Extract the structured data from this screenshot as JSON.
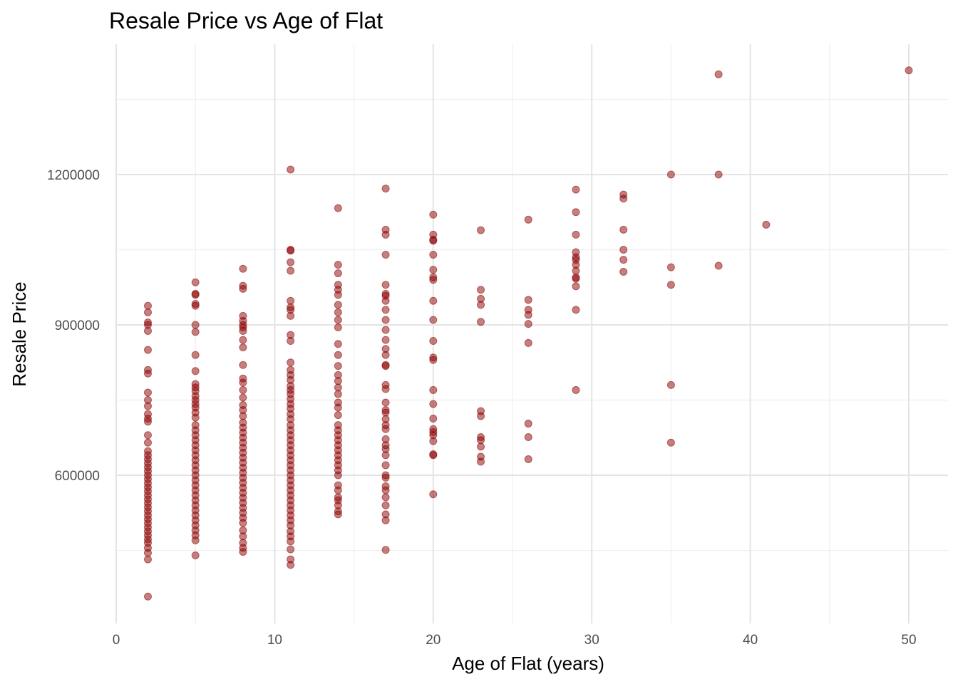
{
  "chart_data": {
    "type": "scatter",
    "title": "Resale Price vs Age of Flat",
    "xlabel": "Age of Flat (years)",
    "ylabel": "Resale Price",
    "xlim": [
      0,
      52.5
    ],
    "ylim": [
      360000,
      1405000
    ],
    "x_ticks": [
      0,
      10,
      20,
      30,
      40,
      50
    ],
    "y_ticks": [
      600000,
      900000,
      1200000
    ],
    "x_tick_labels": [
      "0",
      "10",
      "20",
      "30",
      "40",
      "50"
    ],
    "y_tick_labels": [
      "600000",
      "900000",
      "1200000"
    ],
    "grid": true,
    "point_color": "#8b0000",
    "point_opacity": 0.5,
    "points": [
      [
        2,
        938000
      ],
      [
        2,
        925000
      ],
      [
        2,
        905000
      ],
      [
        2,
        900000
      ],
      [
        2,
        888000
      ],
      [
        2,
        850000
      ],
      [
        2,
        810000
      ],
      [
        2,
        803000
      ],
      [
        2,
        765000
      ],
      [
        2,
        750000
      ],
      [
        2,
        738000
      ],
      [
        2,
        722000
      ],
      [
        2,
        713000
      ],
      [
        2,
        707000
      ],
      [
        2,
        680000
      ],
      [
        2,
        665000
      ],
      [
        2,
        648000
      ],
      [
        2,
        640000
      ],
      [
        2,
        632000
      ],
      [
        2,
        624000
      ],
      [
        2,
        616000
      ],
      [
        2,
        608000
      ],
      [
        2,
        600000
      ],
      [
        2,
        592000
      ],
      [
        2,
        584000
      ],
      [
        2,
        576000
      ],
      [
        2,
        568000
      ],
      [
        2,
        560000
      ],
      [
        2,
        552000
      ],
      [
        2,
        544000
      ],
      [
        2,
        536000
      ],
      [
        2,
        528000
      ],
      [
        2,
        520000
      ],
      [
        2,
        512000
      ],
      [
        2,
        504000
      ],
      [
        2,
        496000
      ],
      [
        2,
        488000
      ],
      [
        2,
        480000
      ],
      [
        2,
        472000
      ],
      [
        2,
        465000
      ],
      [
        2,
        455000
      ],
      [
        2,
        445000
      ],
      [
        2,
        432000
      ],
      [
        2,
        358000
      ],
      [
        5,
        985000
      ],
      [
        5,
        962000
      ],
      [
        5,
        960000
      ],
      [
        5,
        942000
      ],
      [
        5,
        938000
      ],
      [
        5,
        900000
      ],
      [
        5,
        886000
      ],
      [
        5,
        840000
      ],
      [
        5,
        808000
      ],
      [
        5,
        782000
      ],
      [
        5,
        775000
      ],
      [
        5,
        768000
      ],
      [
        5,
        758000
      ],
      [
        5,
        750000
      ],
      [
        5,
        742000
      ],
      [
        5,
        735000
      ],
      [
        5,
        725000
      ],
      [
        5,
        715000
      ],
      [
        5,
        700000
      ],
      [
        5,
        690000
      ],
      [
        5,
        680000
      ],
      [
        5,
        670000
      ],
      [
        5,
        660000
      ],
      [
        5,
        650000
      ],
      [
        5,
        640000
      ],
      [
        5,
        630000
      ],
      [
        5,
        620000
      ],
      [
        5,
        610000
      ],
      [
        5,
        600000
      ],
      [
        5,
        590000
      ],
      [
        5,
        580000
      ],
      [
        5,
        570000
      ],
      [
        5,
        560000
      ],
      [
        5,
        550000
      ],
      [
        5,
        540000
      ],
      [
        5,
        530000
      ],
      [
        5,
        520000
      ],
      [
        5,
        510000
      ],
      [
        5,
        500000
      ],
      [
        5,
        490000
      ],
      [
        5,
        480000
      ],
      [
        5,
        470000
      ],
      [
        5,
        440000
      ],
      [
        8,
        1012000
      ],
      [
        8,
        978000
      ],
      [
        8,
        972000
      ],
      [
        8,
        918000
      ],
      [
        8,
        908000
      ],
      [
        8,
        900000
      ],
      [
        8,
        895000
      ],
      [
        8,
        888000
      ],
      [
        8,
        870000
      ],
      [
        8,
        855000
      ],
      [
        8,
        820000
      ],
      [
        8,
        793000
      ],
      [
        8,
        785000
      ],
      [
        8,
        770000
      ],
      [
        8,
        755000
      ],
      [
        8,
        740000
      ],
      [
        8,
        730000
      ],
      [
        8,
        718000
      ],
      [
        8,
        705000
      ],
      [
        8,
        695000
      ],
      [
        8,
        685000
      ],
      [
        8,
        675000
      ],
      [
        8,
        665000
      ],
      [
        8,
        655000
      ],
      [
        8,
        645000
      ],
      [
        8,
        635000
      ],
      [
        8,
        625000
      ],
      [
        8,
        615000
      ],
      [
        8,
        605000
      ],
      [
        8,
        595000
      ],
      [
        8,
        585000
      ],
      [
        8,
        575000
      ],
      [
        8,
        565000
      ],
      [
        8,
        555000
      ],
      [
        8,
        545000
      ],
      [
        8,
        535000
      ],
      [
        8,
        525000
      ],
      [
        8,
        515000
      ],
      [
        8,
        505000
      ],
      [
        8,
        490000
      ],
      [
        8,
        478000
      ],
      [
        8,
        465000
      ],
      [
        8,
        455000
      ],
      [
        8,
        447000
      ],
      [
        11,
        1210000
      ],
      [
        11,
        1050000
      ],
      [
        11,
        1048000
      ],
      [
        11,
        1025000
      ],
      [
        11,
        1008000
      ],
      [
        11,
        948000
      ],
      [
        11,
        935000
      ],
      [
        11,
        930000
      ],
      [
        11,
        918000
      ],
      [
        11,
        880000
      ],
      [
        11,
        868000
      ],
      [
        11,
        825000
      ],
      [
        11,
        810000
      ],
      [
        11,
        800000
      ],
      [
        11,
        790000
      ],
      [
        11,
        778000
      ],
      [
        11,
        770000
      ],
      [
        11,
        762000
      ],
      [
        11,
        752000
      ],
      [
        11,
        742000
      ],
      [
        11,
        733000
      ],
      [
        11,
        722000
      ],
      [
        11,
        712000
      ],
      [
        11,
        700000
      ],
      [
        11,
        690000
      ],
      [
        11,
        680000
      ],
      [
        11,
        670000
      ],
      [
        11,
        660000
      ],
      [
        11,
        650000
      ],
      [
        11,
        640000
      ],
      [
        11,
        630000
      ],
      [
        11,
        620000
      ],
      [
        11,
        610000
      ],
      [
        11,
        600000
      ],
      [
        11,
        590000
      ],
      [
        11,
        580000
      ],
      [
        11,
        570000
      ],
      [
        11,
        560000
      ],
      [
        11,
        550000
      ],
      [
        11,
        540000
      ],
      [
        11,
        530000
      ],
      [
        11,
        520000
      ],
      [
        11,
        510000
      ],
      [
        11,
        500000
      ],
      [
        11,
        488000
      ],
      [
        11,
        478000
      ],
      [
        11,
        468000
      ],
      [
        11,
        452000
      ],
      [
        11,
        432000
      ],
      [
        11,
        421000
      ],
      [
        14,
        1133000
      ],
      [
        14,
        1020000
      ],
      [
        14,
        1003000
      ],
      [
        14,
        980000
      ],
      [
        14,
        970000
      ],
      [
        14,
        960000
      ],
      [
        14,
        940000
      ],
      [
        14,
        925000
      ],
      [
        14,
        910000
      ],
      [
        14,
        895000
      ],
      [
        14,
        862000
      ],
      [
        14,
        840000
      ],
      [
        14,
        818000
      ],
      [
        14,
        800000
      ],
      [
        14,
        788000
      ],
      [
        14,
        775000
      ],
      [
        14,
        762000
      ],
      [
        14,
        745000
      ],
      [
        14,
        735000
      ],
      [
        14,
        720000
      ],
      [
        14,
        700000
      ],
      [
        14,
        690000
      ],
      [
        14,
        680000
      ],
      [
        14,
        670000
      ],
      [
        14,
        660000
      ],
      [
        14,
        650000
      ],
      [
        14,
        640000
      ],
      [
        14,
        630000
      ],
      [
        14,
        620000
      ],
      [
        14,
        610000
      ],
      [
        14,
        600000
      ],
      [
        14,
        580000
      ],
      [
        14,
        570000
      ],
      [
        14,
        556000
      ],
      [
        14,
        550000
      ],
      [
        14,
        540000
      ],
      [
        14,
        528000
      ],
      [
        14,
        522000
      ],
      [
        17,
        1172000
      ],
      [
        17,
        1090000
      ],
      [
        17,
        1080000
      ],
      [
        17,
        1040000
      ],
      [
        17,
        980000
      ],
      [
        17,
        962000
      ],
      [
        17,
        958000
      ],
      [
        17,
        948000
      ],
      [
        17,
        930000
      ],
      [
        17,
        910000
      ],
      [
        17,
        890000
      ],
      [
        17,
        870000
      ],
      [
        17,
        852000
      ],
      [
        17,
        840000
      ],
      [
        17,
        820000
      ],
      [
        17,
        818000
      ],
      [
        17,
        780000
      ],
      [
        17,
        772000
      ],
      [
        17,
        745000
      ],
      [
        17,
        730000
      ],
      [
        17,
        725000
      ],
      [
        17,
        712000
      ],
      [
        17,
        700000
      ],
      [
        17,
        692000
      ],
      [
        17,
        672000
      ],
      [
        17,
        660000
      ],
      [
        17,
        652000
      ],
      [
        17,
        640000
      ],
      [
        17,
        620000
      ],
      [
        17,
        600000
      ],
      [
        17,
        595000
      ],
      [
        17,
        578000
      ],
      [
        17,
        570000
      ],
      [
        17,
        556000
      ],
      [
        17,
        540000
      ],
      [
        17,
        522000
      ],
      [
        17,
        510000
      ],
      [
        17,
        451000
      ],
      [
        20,
        1120000
      ],
      [
        20,
        1080000
      ],
      [
        20,
        1070000
      ],
      [
        20,
        1068000
      ],
      [
        20,
        1040000
      ],
      [
        20,
        1010000
      ],
      [
        20,
        995000
      ],
      [
        20,
        990000
      ],
      [
        20,
        948000
      ],
      [
        20,
        910000
      ],
      [
        20,
        868000
      ],
      [
        20,
        835000
      ],
      [
        20,
        830000
      ],
      [
        20,
        770000
      ],
      [
        20,
        742000
      ],
      [
        20,
        713000
      ],
      [
        20,
        692000
      ],
      [
        20,
        686000
      ],
      [
        20,
        680000
      ],
      [
        20,
        668000
      ],
      [
        20,
        642000
      ],
      [
        20,
        640000
      ],
      [
        20,
        562000
      ],
      [
        23,
        1089000
      ],
      [
        23,
        970000
      ],
      [
        23,
        952000
      ],
      [
        23,
        940000
      ],
      [
        23,
        906000
      ],
      [
        23,
        728000
      ],
      [
        23,
        718000
      ],
      [
        23,
        676000
      ],
      [
        23,
        670000
      ],
      [
        23,
        657000
      ],
      [
        23,
        637000
      ],
      [
        23,
        627000
      ],
      [
        26,
        1110000
      ],
      [
        26,
        950000
      ],
      [
        26,
        930000
      ],
      [
        26,
        920000
      ],
      [
        26,
        902000
      ],
      [
        26,
        864000
      ],
      [
        26,
        703000
      ],
      [
        26,
        676000
      ],
      [
        26,
        632000
      ],
      [
        29,
        1170000
      ],
      [
        29,
        1125000
      ],
      [
        29,
        1080000
      ],
      [
        29,
        1045000
      ],
      [
        29,
        1035000
      ],
      [
        29,
        1030000
      ],
      [
        29,
        1020000
      ],
      [
        29,
        1008000
      ],
      [
        29,
        995000
      ],
      [
        29,
        992000
      ],
      [
        29,
        977000
      ],
      [
        29,
        930000
      ],
      [
        29,
        770000
      ],
      [
        32,
        1160000
      ],
      [
        32,
        1152000
      ],
      [
        32,
        1090000
      ],
      [
        32,
        1050000
      ],
      [
        32,
        1030000
      ],
      [
        32,
        1006000
      ],
      [
        35,
        1200000
      ],
      [
        35,
        1015000
      ],
      [
        35,
        980000
      ],
      [
        35,
        780000
      ],
      [
        35,
        665000
      ],
      [
        38,
        1400000
      ],
      [
        38,
        1200000
      ],
      [
        38,
        1018000
      ],
      [
        41,
        1100000
      ],
      [
        50,
        1408000
      ]
    ]
  }
}
